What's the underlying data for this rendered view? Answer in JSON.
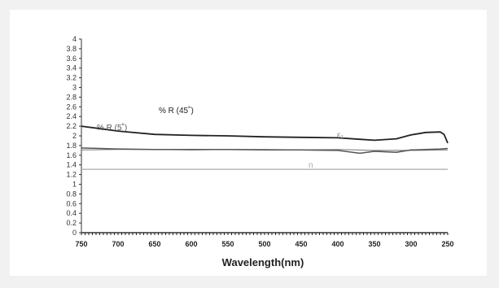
{
  "chart_data": {
    "type": "line",
    "xlabel": "Wavelength(nm)",
    "ylabel": "",
    "xlim": [
      750,
      250
    ],
    "ylim": [
      0,
      4
    ],
    "x_reversed": true,
    "x_ticks": [
      750,
      700,
      650,
      600,
      550,
      500,
      450,
      400,
      350,
      300,
      250
    ],
    "y_ticks": [
      "0",
      "0.2",
      "0.4",
      "0.6",
      "0.8",
      "1",
      "1.2",
      "1.4",
      "1.6",
      "1.8",
      "2",
      "2.2",
      "2.4",
      "2.6",
      "2.8",
      "3",
      "3.2",
      "3.4",
      "3.6",
      "3.8",
      "4"
    ],
    "grid": false,
    "series": [
      {
        "name": "% R (45˚)",
        "color": "#222222",
        "x": [
          750,
          700,
          650,
          600,
          550,
          500,
          450,
          400,
          370,
          350,
          320,
          300,
          280,
          260,
          255,
          250
        ],
        "y": [
          2.2,
          2.1,
          2.03,
          2.01,
          2.0,
          1.98,
          1.97,
          1.96,
          1.93,
          1.91,
          1.94,
          2.02,
          2.07,
          2.08,
          2.03,
          1.85
        ]
      },
      {
        "name": "% R (5˚)",
        "color": "#555555",
        "x": [
          750,
          700,
          650,
          600,
          550,
          500,
          450,
          400,
          370,
          350,
          320,
          300,
          280,
          260,
          250
        ],
        "y": [
          1.75,
          1.73,
          1.72,
          1.72,
          1.72,
          1.71,
          1.71,
          1.7,
          1.64,
          1.68,
          1.66,
          1.71,
          1.72,
          1.73,
          1.74
        ]
      },
      {
        "name": "ε₁",
        "color": "#8a8a8a",
        "x": [
          750,
          700,
          650,
          600,
          550,
          500,
          450,
          400,
          350,
          300,
          250
        ],
        "y": [
          1.71,
          1.72,
          1.72,
          1.71,
          1.72,
          1.72,
          1.71,
          1.72,
          1.7,
          1.7,
          1.71
        ]
      },
      {
        "name": "n",
        "color": "#aaaaaa",
        "x": [
          750,
          700,
          650,
          600,
          550,
          500,
          450,
          400,
          350,
          300,
          250
        ],
        "y": [
          1.31,
          1.31,
          1.31,
          1.31,
          1.31,
          1.31,
          1.31,
          1.31,
          1.31,
          1.31,
          1.31
        ]
      }
    ]
  }
}
